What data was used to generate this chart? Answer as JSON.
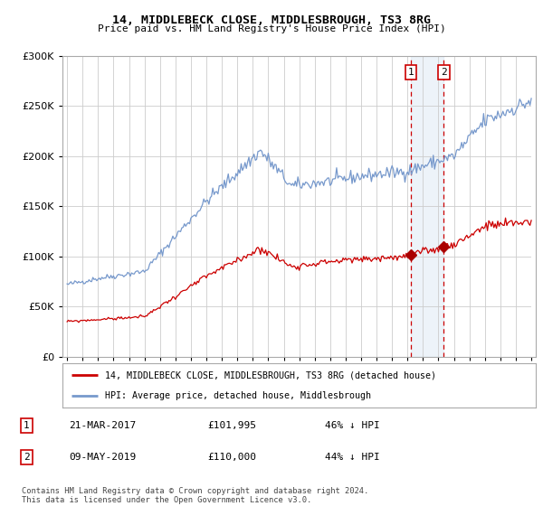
{
  "title": "14, MIDDLEBECK CLOSE, MIDDLESBROUGH, TS3 8RG",
  "subtitle": "Price paid vs. HM Land Registry's House Price Index (HPI)",
  "hpi_label": "HPI: Average price, detached house, Middlesbrough",
  "property_label": "14, MIDDLEBECK CLOSE, MIDDLESBROUGH, TS3 8RG (detached house)",
  "hpi_color": "#7799cc",
  "property_color": "#cc0000",
  "marker_color": "#aa0000",
  "vline_color": "#cc0000",
  "highlight_bg": "#ccddf0",
  "sale1_date_num": 2017.22,
  "sale1_price": 101995,
  "sale1_label": "21-MAR-2017",
  "sale1_pct": "46% ↓ HPI",
  "sale2_date_num": 2019.35,
  "sale2_price": 110000,
  "sale2_label": "09-MAY-2019",
  "sale2_pct": "44% ↓ HPI",
  "ylim": [
    0,
    300000
  ],
  "yticks": [
    0,
    50000,
    100000,
    150000,
    200000,
    250000,
    300000
  ],
  "xlim_start": 1994.7,
  "xlim_end": 2025.3,
  "footer": "Contains HM Land Registry data © Crown copyright and database right 2024.\nThis data is licensed under the Open Government Licence v3.0.",
  "legend_box_color": "#cc0000",
  "background_color": "#ffffff",
  "grid_color": "#cccccc",
  "hpi_seed": 42,
  "prop_seed": 99
}
